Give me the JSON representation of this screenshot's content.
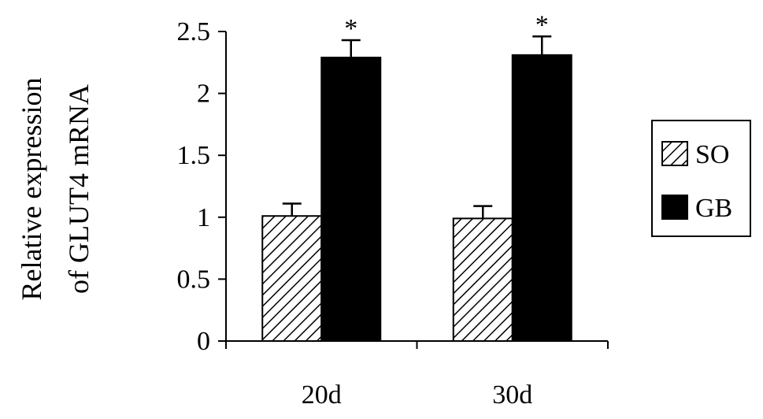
{
  "chart_data": {
    "type": "bar",
    "ylabel": [
      "Relative expression",
      "of GLUT4 mRNA"
    ],
    "ylim": [
      0,
      2.5
    ],
    "yticks": [
      0,
      0.5,
      1,
      1.5,
      2,
      2.5
    ],
    "ytick_labels": [
      "0",
      "0.5",
      "1",
      "1.5",
      "2",
      "2.5"
    ],
    "categories": [
      "20d",
      "30d"
    ],
    "series": [
      {
        "name": "SO",
        "values": [
          1.01,
          0.99
        ],
        "errors": [
          0.1,
          0.1
        ],
        "fill": "hatch"
      },
      {
        "name": "GB",
        "values": [
          2.29,
          2.31
        ],
        "errors": [
          0.14,
          0.15
        ],
        "fill": "#000000"
      }
    ],
    "annotations": [
      {
        "series": "GB",
        "category": "20d",
        "text": "*"
      },
      {
        "series": "GB",
        "category": "30d",
        "text": "*"
      }
    ],
    "legend": {
      "position": "right",
      "entries": [
        "SO",
        "GB"
      ]
    },
    "grid": false,
    "colors": {
      "axis": "#000000",
      "bar_dark": "#000000",
      "hatch": "#000000",
      "background": "#ffffff"
    }
  }
}
